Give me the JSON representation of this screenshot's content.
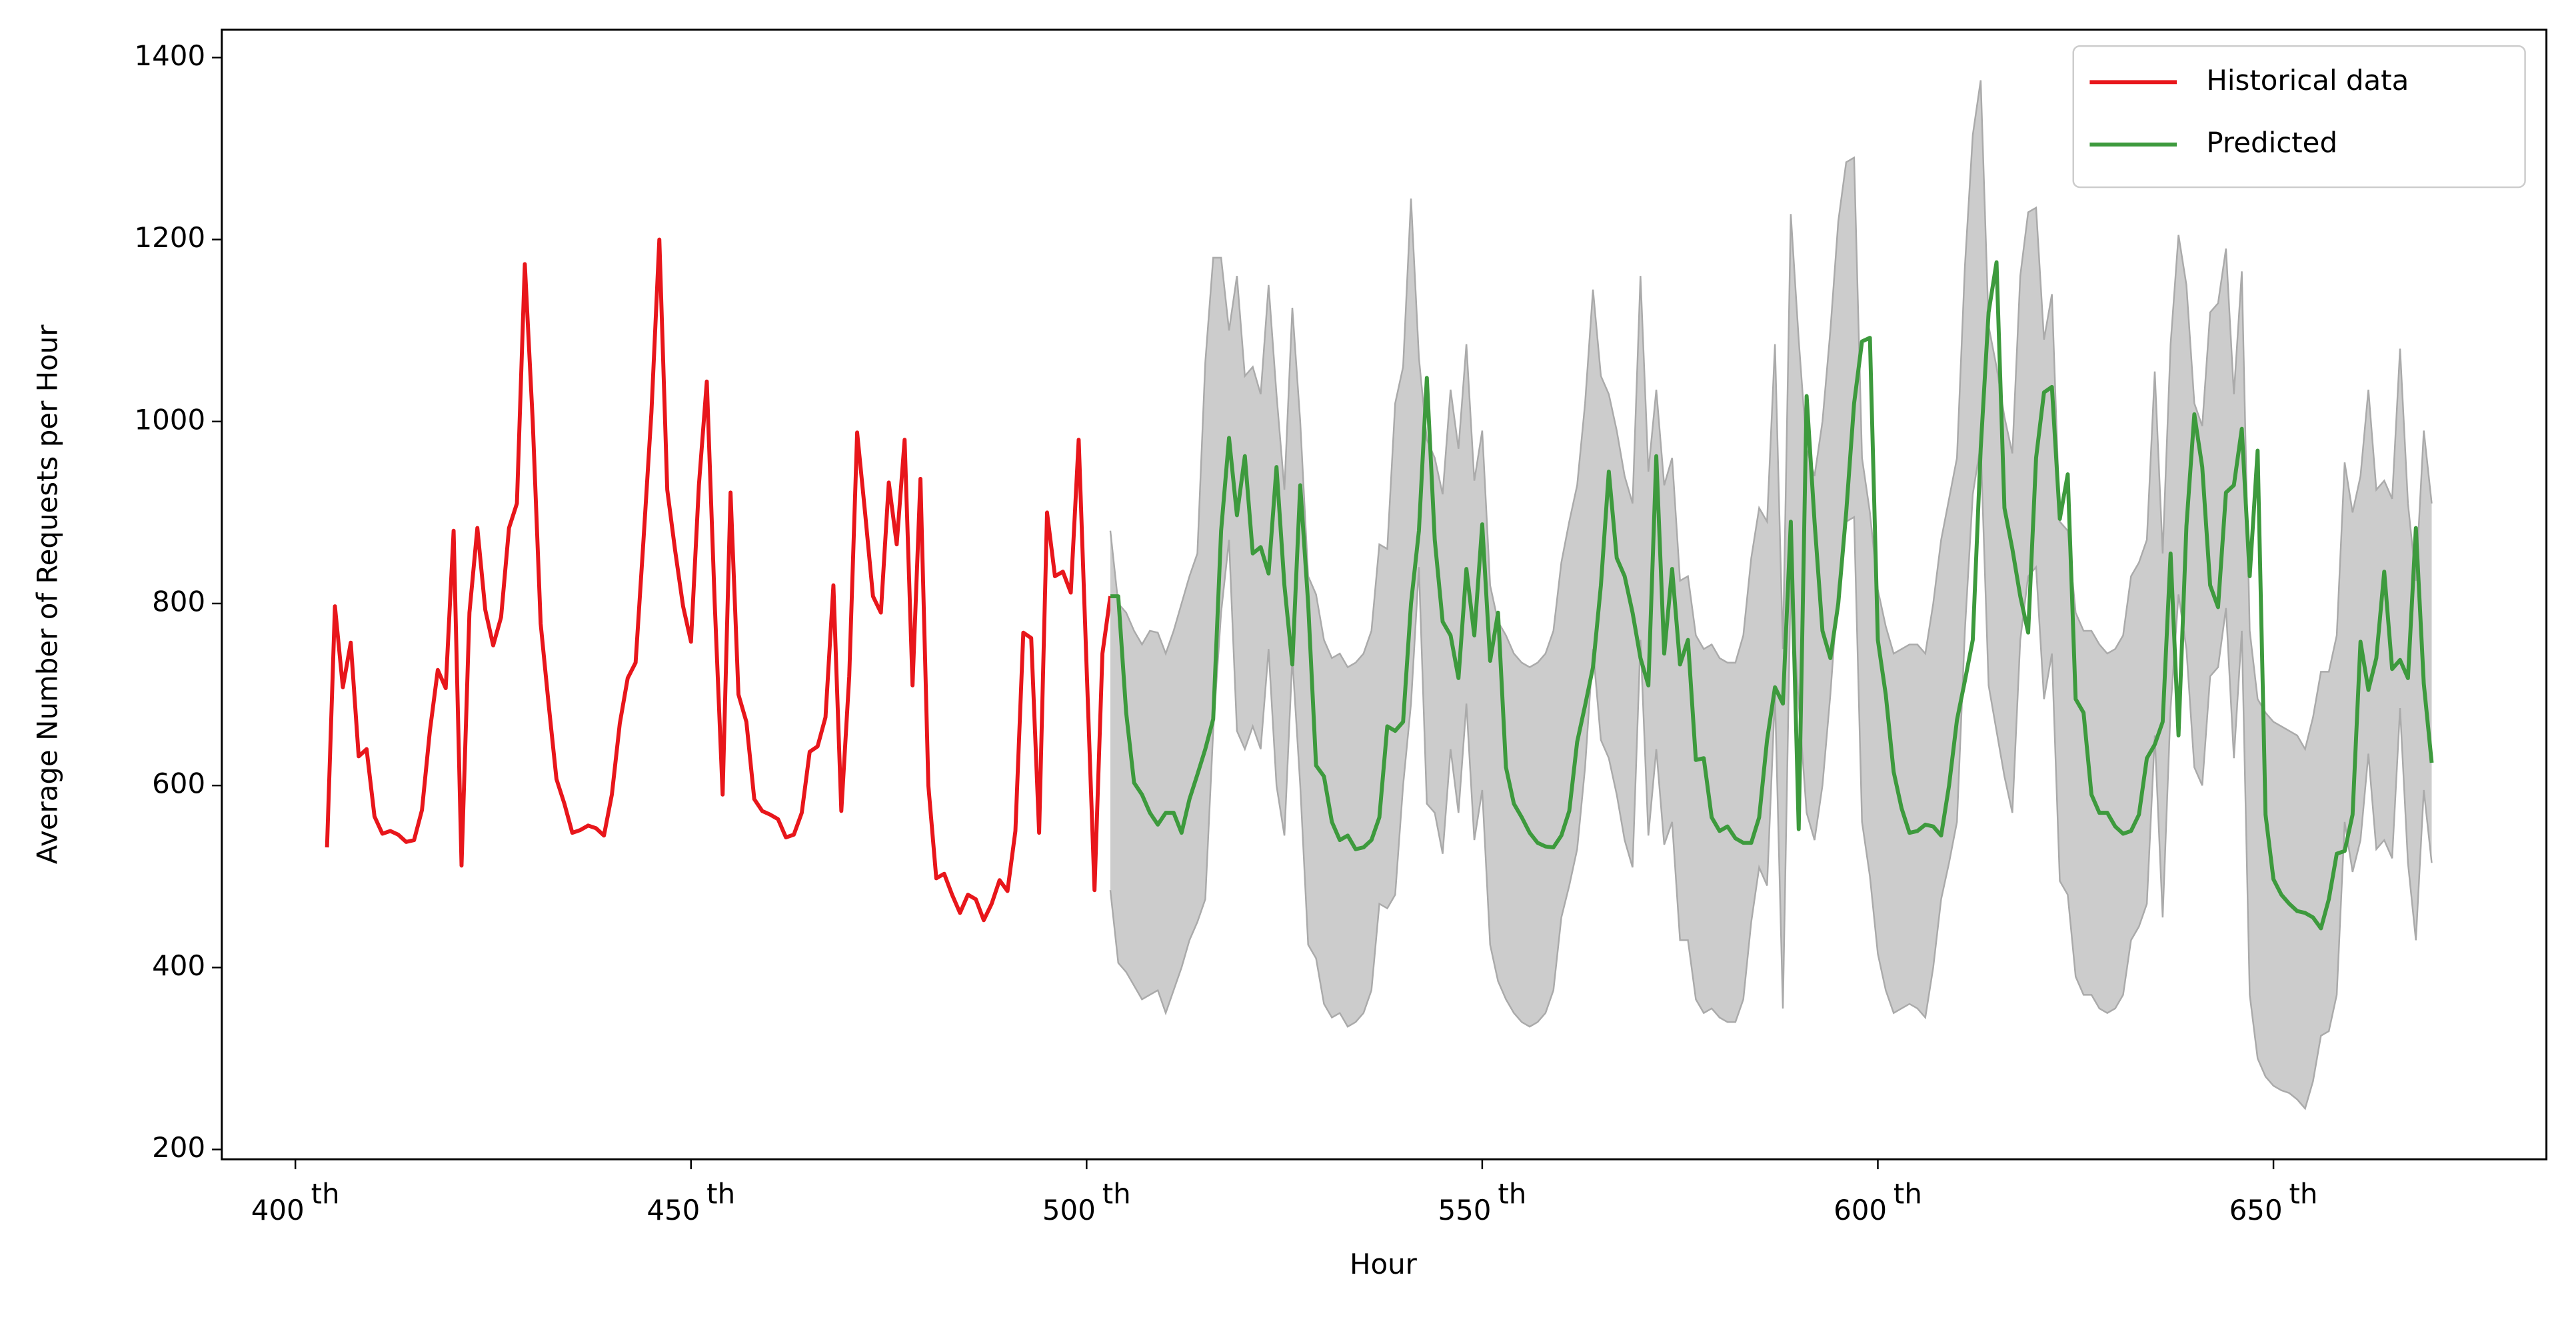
{
  "chart_data": {
    "type": "line",
    "x_label": "Hour",
    "y_label": "Average Number of Requests per Hour",
    "xlim": [
      390.7,
      684.5
    ],
    "ylim": [
      189.2,
      1430.7
    ],
    "xticks": [
      {
        "value": 400,
        "label": "400th"
      },
      {
        "value": 450,
        "label": "450th"
      },
      {
        "value": 500,
        "label": "500th"
      },
      {
        "value": 550,
        "label": "550th"
      },
      {
        "value": 600,
        "label": "600th"
      },
      {
        "value": 650,
        "label": "650th"
      }
    ],
    "yticks": [
      200,
      400,
      600,
      800,
      1000,
      1200,
      1400
    ],
    "grid": false,
    "legend": "upper right",
    "series": [
      {
        "name": "Historical data",
        "color": "#e8161b",
        "x": [
          404,
          405,
          406,
          407,
          408,
          409,
          410,
          411,
          412,
          413,
          414,
          415,
          416,
          417,
          418,
          419,
          420,
          421,
          422,
          423,
          424,
          425,
          426,
          427,
          428,
          429,
          430,
          431,
          432,
          433,
          434,
          435,
          436,
          437,
          438,
          439,
          440,
          441,
          442,
          443,
          444,
          445,
          446,
          447,
          448,
          449,
          450,
          451,
          452,
          453,
          454,
          455,
          456,
          457,
          458,
          459,
          460,
          461,
          462,
          463,
          464,
          465,
          466,
          467,
          468,
          469,
          470,
          471,
          472,
          473,
          474,
          475,
          476,
          477,
          478,
          479,
          480,
          481,
          482,
          483,
          484,
          485,
          486,
          487,
          488,
          489,
          490,
          491,
          492,
          493,
          494,
          495,
          496,
          497,
          498,
          499,
          500,
          501,
          502,
          503
        ],
        "values": [
          532,
          797,
          708,
          757,
          632,
          640,
          566,
          547,
          550,
          546,
          538,
          540,
          573,
          660,
          727,
          707,
          880,
          512,
          790,
          883,
          793,
          754,
          785,
          883,
          910,
          1173,
          1000,
          778,
          690,
          607,
          580,
          548,
          551,
          556,
          553,
          545,
          590,
          668,
          718,
          735,
          870,
          1010,
          1200,
          925,
          858,
          797,
          758,
          930,
          1044,
          800,
          590,
          922,
          700,
          670,
          585,
          572,
          568,
          563,
          543,
          546,
          570,
          637,
          643,
          675,
          820,
          572,
          720,
          988,
          900,
          808,
          790,
          933,
          865,
          980,
          710,
          937,
          600,
          498,
          503,
          480,
          460,
          480,
          475,
          452,
          470,
          496,
          484,
          550,
          768,
          762,
          548,
          900,
          830,
          835,
          812,
          980,
          730,
          485,
          745,
          808
        ]
      },
      {
        "name": "Predicted",
        "color": "#3d9a3d",
        "band_color": "#cccccc",
        "band_edge_color": "#aaaaaa",
        "x": [
          503,
          504,
          505,
          506,
          507,
          508,
          509,
          510,
          511,
          512,
          513,
          514,
          515,
          516,
          517,
          518,
          519,
          520,
          521,
          522,
          523,
          524,
          525,
          526,
          527,
          528,
          529,
          530,
          531,
          532,
          533,
          534,
          535,
          536,
          537,
          538,
          539,
          540,
          541,
          542,
          543,
          544,
          545,
          546,
          547,
          548,
          549,
          550,
          551,
          552,
          553,
          554,
          555,
          556,
          557,
          558,
          559,
          560,
          561,
          562,
          563,
          564,
          565,
          566,
          567,
          568,
          569,
          570,
          571,
          572,
          573,
          574,
          575,
          576,
          577,
          578,
          579,
          580,
          581,
          582,
          583,
          584,
          585,
          586,
          587,
          588,
          589,
          590,
          591,
          592,
          593,
          594,
          595,
          596,
          597,
          598,
          599,
          600,
          601,
          602,
          603,
          604,
          605,
          606,
          607,
          608,
          609,
          610,
          611,
          612,
          613,
          614,
          615,
          616,
          617,
          618,
          619,
          620,
          621,
          622,
          623,
          624,
          625,
          626,
          627,
          628,
          629,
          630,
          631,
          632,
          633,
          634,
          635,
          636,
          637,
          638,
          639,
          640,
          641,
          642,
          643,
          644,
          645,
          646,
          647,
          648,
          649,
          650,
          651,
          652,
          653,
          654,
          655,
          656,
          657,
          658,
          659,
          660,
          661,
          662,
          663,
          664,
          665,
          666,
          667,
          668,
          669,
          670
        ],
        "values": [
          808,
          808,
          680,
          603,
          590,
          570,
          557,
          570,
          570,
          548,
          585,
          612,
          640,
          673,
          880,
          982,
          897,
          962,
          855,
          862,
          833,
          950,
          820,
          733,
          930,
          800,
          622,
          610,
          560,
          540,
          545,
          530,
          532,
          540,
          565,
          665,
          660,
          670,
          800,
          880,
          1048,
          870,
          780,
          765,
          718,
          838,
          765,
          887,
          737,
          790,
          620,
          580,
          565,
          548,
          537,
          533,
          532,
          545,
          572,
          648,
          688,
          730,
          820,
          945,
          850,
          830,
          790,
          740,
          710,
          962,
          745,
          838,
          733,
          760,
          628,
          630,
          565,
          550,
          555,
          542,
          537,
          537,
          565,
          650,
          708,
          690,
          890,
          552,
          1028,
          890,
          770,
          740,
          800,
          900,
          1020,
          1088,
          1092,
          760,
          700,
          615,
          575,
          548,
          550,
          557,
          555,
          545,
          600,
          672,
          715,
          760,
          970,
          1120,
          1175,
          905,
          860,
          808,
          768,
          960,
          1032,
          1038,
          893,
          942,
          695,
          680,
          590,
          570,
          570,
          555,
          547,
          550,
          568,
          630,
          645,
          670,
          855,
          655,
          885,
          1008,
          950,
          820,
          796,
          922,
          930,
          992,
          830,
          968,
          568,
          497,
          480,
          470,
          462,
          460,
          455,
          443,
          475,
          525,
          528,
          568,
          758,
          705,
          740,
          835,
          728,
          738,
          718,
          883,
          712,
          625
        ],
        "upper": [
          880,
          800,
          790,
          770,
          755,
          770,
          768,
          745,
          770,
          800,
          830,
          855,
          1065,
          1180,
          1180,
          1100,
          1160,
          1050,
          1060,
          1030,
          1150,
          1030,
          925,
          1125,
          1000,
          830,
          810,
          760,
          740,
          745,
          730,
          735,
          745,
          770,
          865,
          860,
          1020,
          1060,
          1245,
          1070,
          980,
          960,
          920,
          1035,
          970,
          1085,
          935,
          990,
          820,
          780,
          765,
          745,
          735,
          730,
          735,
          745,
          770,
          845,
          890,
          930,
          1020,
          1145,
          1050,
          1030,
          990,
          940,
          910,
          1160,
          945,
          1035,
          930,
          960,
          825,
          830,
          765,
          750,
          755,
          740,
          735,
          735,
          765,
          850,
          905,
          890,
          1085,
          750,
          1228,
          1090,
          970,
          940,
          1000,
          1100,
          1220,
          1285,
          1290,
          960,
          900,
          815,
          775,
          745,
          750,
          755,
          755,
          745,
          800,
          870,
          915,
          960,
          1170,
          1315,
          1375,
          1105,
          1060,
          1005,
          965,
          1160,
          1230,
          1235,
          1090,
          1140,
          890,
          880,
          790,
          770,
          770,
          755,
          745,
          750,
          765,
          830,
          845,
          870,
          1055,
          855,
          1085,
          1205,
          1150,
          1020,
          995,
          1120,
          1130,
          1190,
          1030,
          1165,
          770,
          695,
          680,
          670,
          665,
          660,
          655,
          640,
          675,
          725,
          725,
          765,
          955,
          900,
          940,
          1035,
          925,
          935,
          915,
          1080,
          910,
          825,
          990,
          910
        ],
        "lower": [
          485,
          405,
          395,
          380,
          365,
          370,
          375,
          350,
          375,
          400,
          430,
          450,
          475,
          660,
          790,
          870,
          660,
          640,
          665,
          640,
          750,
          600,
          545,
          740,
          600,
          425,
          410,
          360,
          345,
          350,
          335,
          340,
          350,
          375,
          470,
          465,
          480,
          600,
          690,
          840,
          580,
          570,
          525,
          640,
          570,
          690,
          540,
          595,
          425,
          385,
          365,
          350,
          340,
          335,
          340,
          350,
          375,
          455,
          490,
          530,
          620,
          750,
          650,
          630,
          590,
          540,
          510,
          760,
          545,
          640,
          535,
          560,
          430,
          430,
          365,
          350,
          355,
          345,
          340,
          340,
          365,
          450,
          510,
          490,
          700,
          355,
          830,
          690,
          570,
          540,
          600,
          700,
          820,
          890,
          895,
          560,
          500,
          415,
          375,
          350,
          355,
          360,
          355,
          345,
          400,
          475,
          515,
          560,
          770,
          920,
          975,
          710,
          660,
          610,
          570,
          760,
          830,
          840,
          695,
          745,
          495,
          480,
          390,
          370,
          370,
          355,
          350,
          355,
          370,
          430,
          445,
          470,
          655,
          455,
          685,
          810,
          750,
          620,
          600,
          720,
          730,
          795,
          630,
          770,
          370,
          300,
          280,
          270,
          265,
          262,
          255,
          245,
          275,
          325,
          330,
          370,
          560,
          505,
          540,
          635,
          530,
          540,
          520,
          685,
          515,
          430,
          595,
          515
        ]
      }
    ]
  }
}
